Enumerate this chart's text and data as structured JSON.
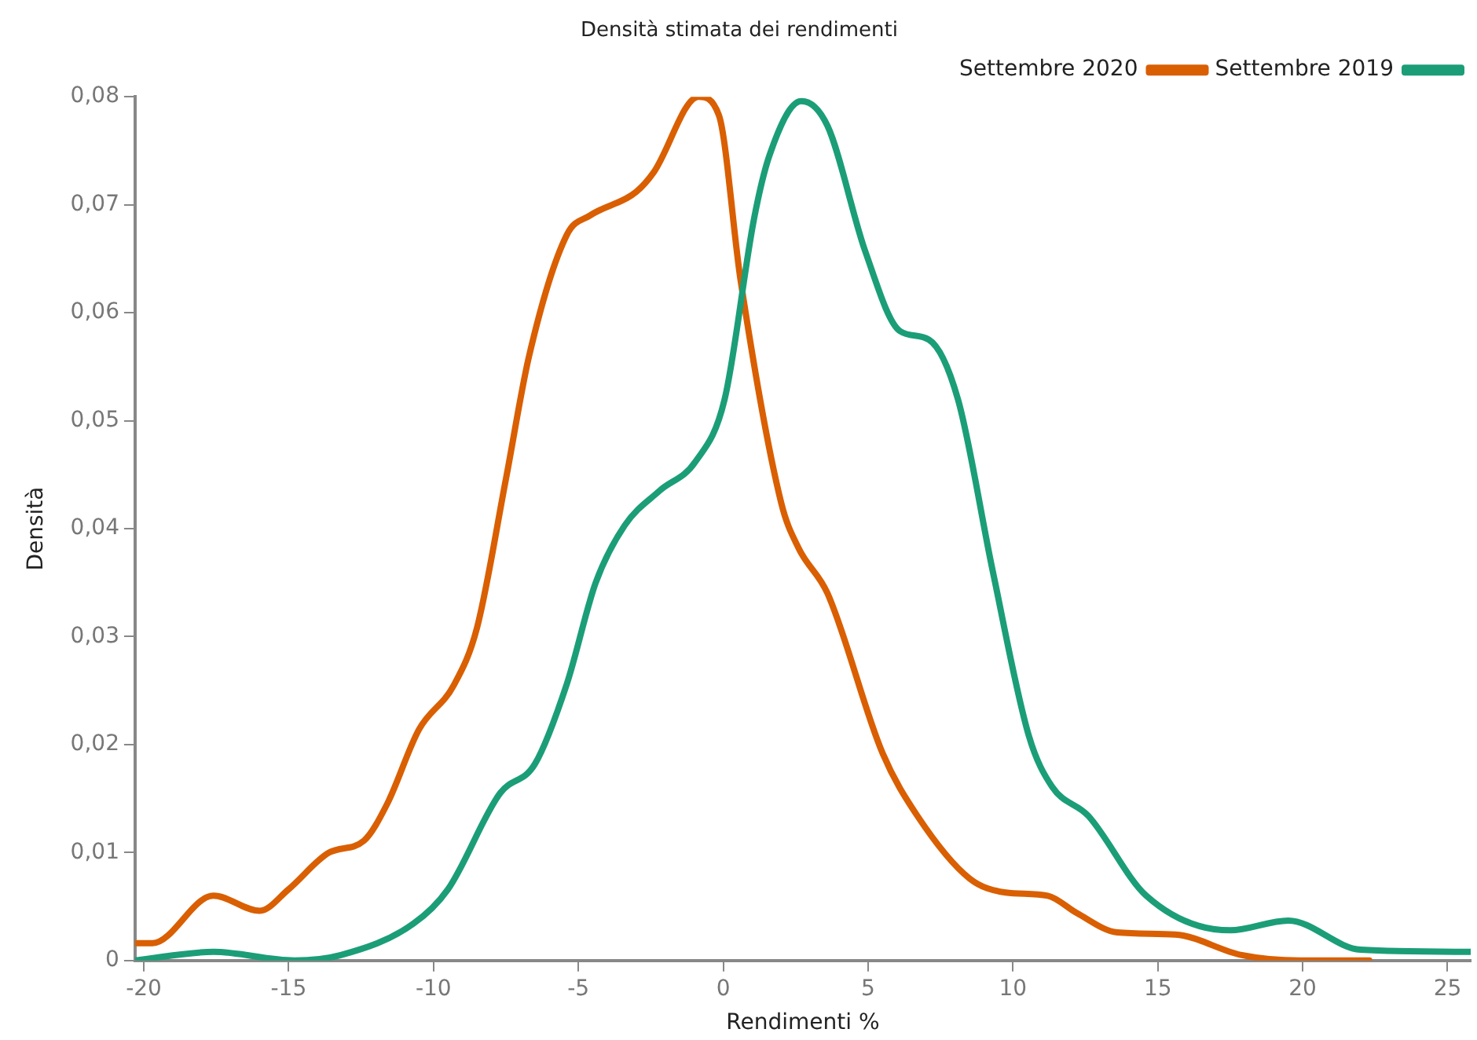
{
  "chart_data": {
    "type": "line",
    "title": "Densità stimata dei rendimenti",
    "xlabel": "Rendimenti %",
    "ylabel": "Densità",
    "xlim": [
      -20.3,
      25.8
    ],
    "xticks": [
      -20,
      -15,
      -10,
      -5,
      0,
      5,
      10,
      15,
      20,
      25
    ],
    "ylim": [
      0,
      0.08
    ],
    "yticks": [
      0,
      {
        "value": 0.01,
        "label": "0,01"
      },
      {
        "value": 0.02,
        "label": "0,02"
      },
      {
        "value": 0.03,
        "label": "0,03"
      },
      {
        "value": 0.04,
        "label": "0,04"
      },
      {
        "value": 0.05,
        "label": "0,05"
      },
      {
        "value": 0.06,
        "label": "0,06"
      },
      {
        "value": 0.07,
        "label": "0,07"
      },
      {
        "value": 0.08,
        "label": "0,08"
      }
    ],
    "grid": false,
    "legend": "top right",
    "marker": "none",
    "line_style": "solid",
    "series": [
      {
        "name": "Settembre 2019",
        "color": "#1b9e77",
        "x": [
          -20.3,
          -17.6,
          -14.8,
          -13.2,
          -10.7,
          -9.5,
          -7.7,
          -6.5,
          -5.4,
          -4.4,
          -3.4,
          -2.2,
          -0.96,
          0.05,
          1.07,
          1.6,
          2.7,
          3.6,
          4.9,
          6.1,
          7.1,
          8.1,
          9.3,
          10.55,
          11.35,
          12.6,
          14.6,
          17.5,
          19.5,
          22.0,
          25.8
        ],
        "values": [
          0,
          0.0008,
          0,
          0.0005,
          0.0034,
          0.0066,
          0.0155,
          0.0182,
          0.0256,
          0.035,
          0.0403,
          0.0435,
          0.0462,
          0.052,
          0.0688,
          0.0746,
          0.0796,
          0.0773,
          0.0657,
          0.0583,
          0.0575,
          0.052,
          0.0361,
          0.0208,
          0.0161,
          0.0134,
          0.006,
          0.0028,
          0.0037,
          0.001,
          0.0008
        ]
      },
      {
        "name": "Settembre 2020",
        "color": "#d95f02",
        "x": [
          -20.3,
          -19.7,
          -17.6,
          -16.0,
          -15.0,
          -13.6,
          -12.4,
          -11.6,
          -10.5,
          -9.3,
          -8.5,
          -7.5,
          -6.7,
          -5.4,
          -4.6,
          -3.0,
          -2.4,
          -0.85,
          -0.15,
          0.6,
          2.0,
          2.6,
          3.6,
          5.5,
          6.7,
          8.5,
          9.75,
          11.2,
          12.2,
          13.6,
          15.6,
          17.9,
          19.9,
          22.3
        ],
        "values": [
          0.0016,
          0.0016,
          0.006,
          0.0046,
          0.0066,
          0.01,
          0.0111,
          0.0145,
          0.0214,
          0.0255,
          0.0308,
          0.0446,
          0.056,
          0.0672,
          0.069,
          0.0712,
          0.073,
          0.08,
          0.0783,
          0.063,
          0.0424,
          0.0382,
          0.034,
          0.0192,
          0.0134,
          0.0076,
          0.0063,
          0.006,
          0.0044,
          0.0026,
          0.0024,
          0.0005,
          0,
          0
        ]
      }
    ]
  }
}
